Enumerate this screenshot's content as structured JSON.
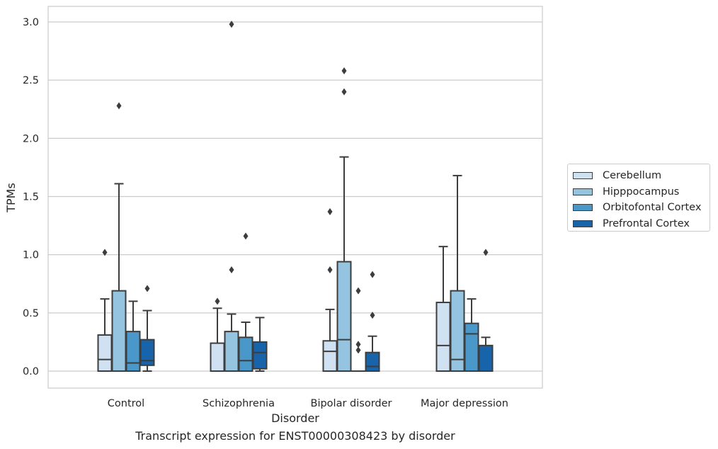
{
  "chart_data": {
    "type": "box",
    "title": "Transcript expression for ENST00000308423 by disorder",
    "xlabel": "Disorder",
    "ylabel": "TPMs",
    "ylim": [
      -0.14,
      3.14
    ],
    "yticks": [
      0.0,
      0.5,
      1.0,
      1.5,
      2.0,
      2.5,
      3.0
    ],
    "ytick_labels": [
      "0.0",
      "0.5",
      "1.0",
      "1.5",
      "2.0",
      "2.5",
      "3.0"
    ],
    "categories": [
      "Control",
      "Schizophrenia",
      "Bipolar disorder",
      "Major depression"
    ],
    "grid": "horizontal",
    "legend_position": "right",
    "series": [
      {
        "name": "Cerebellum",
        "color": "#d0e1f2",
        "boxes": [
          {
            "min": 0.0,
            "q1": 0.0,
            "median": 0.1,
            "q3": 0.31,
            "max": 0.62,
            "outliers": [
              1.02
            ]
          },
          {
            "min": 0.0,
            "q1": 0.0,
            "median": 0.0,
            "q3": 0.24,
            "max": 0.54,
            "outliers": [
              0.6
            ]
          },
          {
            "min": 0.0,
            "q1": 0.0,
            "median": 0.17,
            "q3": 0.26,
            "max": 0.53,
            "outliers": [
              0.87,
              1.37
            ]
          },
          {
            "min": 0.0,
            "q1": 0.0,
            "median": 0.22,
            "q3": 0.59,
            "max": 1.07,
            "outliers": []
          }
        ]
      },
      {
        "name": "Hipppocampus",
        "color": "#94c4df",
        "boxes": [
          {
            "min": 0.0,
            "q1": 0.0,
            "median": 0.0,
            "q3": 0.69,
            "max": 1.61,
            "outliers": [
              2.28
            ]
          },
          {
            "min": 0.0,
            "q1": 0.0,
            "median": 0.0,
            "q3": 0.34,
            "max": 0.49,
            "outliers": [
              0.87,
              2.98
            ]
          },
          {
            "min": 0.0,
            "q1": 0.0,
            "median": 0.27,
            "q3": 0.94,
            "max": 1.84,
            "outliers": [
              2.4,
              2.58
            ]
          },
          {
            "min": 0.0,
            "q1": 0.0,
            "median": 0.1,
            "q3": 0.69,
            "max": 1.68,
            "outliers": []
          }
        ]
      },
      {
        "name": "Orbitofontal Cortex",
        "color": "#4a98c9",
        "boxes": [
          {
            "min": 0.0,
            "q1": 0.0,
            "median": 0.07,
            "q3": 0.34,
            "max": 0.6,
            "outliers": []
          },
          {
            "min": 0.0,
            "q1": 0.0,
            "median": 0.09,
            "q3": 0.29,
            "max": 0.42,
            "outliers": [
              1.16
            ]
          },
          {
            "min": 0.0,
            "q1": 0.0,
            "median": 0.0,
            "q3": 0.0,
            "max": 0.0,
            "outliers": [
              0.18,
              0.23,
              0.69
            ]
          },
          {
            "min": 0.0,
            "q1": 0.0,
            "median": 0.32,
            "q3": 0.41,
            "max": 0.62,
            "outliers": []
          }
        ]
      },
      {
        "name": "Prefrontal Cortex",
        "color": "#1764ab",
        "boxes": [
          {
            "min": 0.0,
            "q1": 0.05,
            "median": 0.09,
            "q3": 0.27,
            "max": 0.52,
            "outliers": [
              0.71
            ]
          },
          {
            "min": 0.0,
            "q1": 0.02,
            "median": 0.16,
            "q3": 0.25,
            "max": 0.46,
            "outliers": []
          },
          {
            "min": 0.0,
            "q1": 0.0,
            "median": 0.04,
            "q3": 0.16,
            "max": 0.3,
            "outliers": [
              0.48,
              0.83
            ]
          },
          {
            "min": 0.0,
            "q1": 0.0,
            "median": 0.0,
            "q3": 0.22,
            "max": 0.29,
            "outliers": [
              1.02
            ]
          }
        ]
      }
    ]
  }
}
